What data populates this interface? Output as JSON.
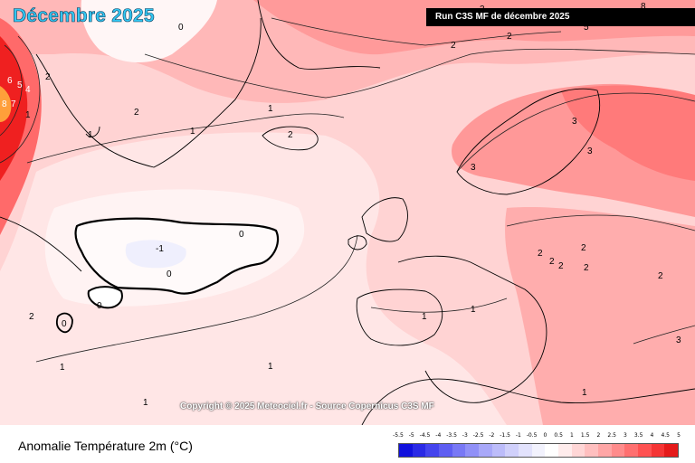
{
  "header": {
    "title": "Décembre 2025",
    "run_label": "Run C3S MF de décembre 2025"
  },
  "map": {
    "copyright": "Copyright © 2025 Meteociel.fr - Source Copernicus C3S MF",
    "contour_labels": [
      "0",
      "8",
      "7",
      "6",
      "5",
      "4",
      "1",
      "2",
      "1",
      "2",
      "3",
      "5",
      "8",
      "2",
      "1",
      "2",
      "1",
      "2",
      "0",
      "-1",
      "0",
      "0",
      "0",
      "2",
      "1",
      "1",
      "1",
      "1",
      "1",
      "1",
      "3",
      "3",
      "3",
      "2",
      "2",
      "2",
      "2",
      "2",
      "2",
      "3"
    ]
  },
  "legend": {
    "variable_title": "Anomalie Température 2m (°C)",
    "tick_labels": [
      "-5.5",
      "-5",
      "-4.5",
      "-4",
      "-3.5",
      "-3",
      "-2.5",
      "-2",
      "-1.5",
      "-1",
      "-0.5",
      "0",
      "0.5",
      "1",
      "1.5",
      "2",
      "2.5",
      "3",
      "3.5",
      "4",
      "4.5",
      "5"
    ],
    "colors": [
      "#1111dd",
      "#2a2ae6",
      "#4444ee",
      "#5e5ef2",
      "#7878f5",
      "#9090f7",
      "#a8a8f9",
      "#bcbcfa",
      "#d0d0fb",
      "#e2e2fc",
      "#f2f2fd",
      "#ffffff",
      "#ffecec",
      "#ffd6d6",
      "#ffbfbf",
      "#ffa6a6",
      "#ff8c8c",
      "#ff7070",
      "#ff5252",
      "#f53535",
      "#e51a1a"
    ]
  }
}
